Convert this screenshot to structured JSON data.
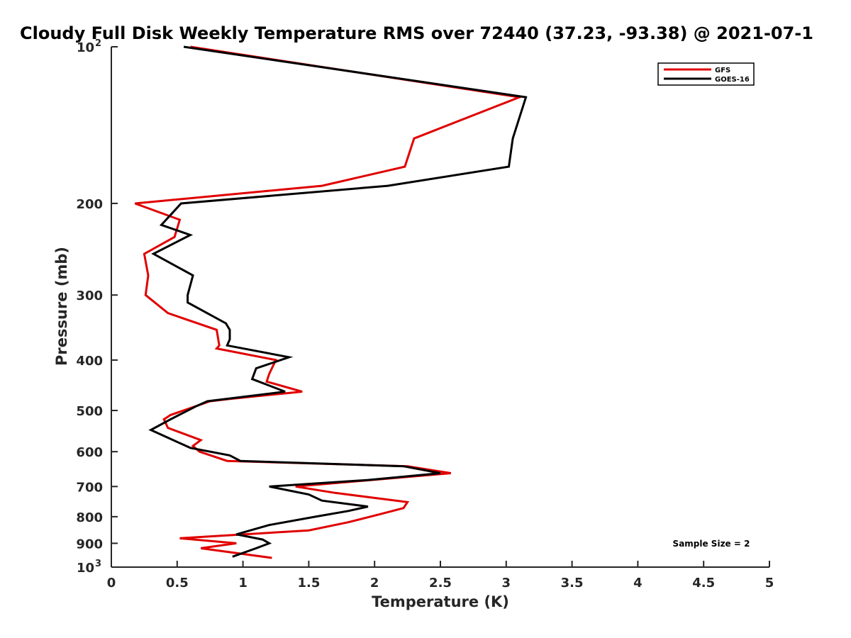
{
  "chart_data": {
    "type": "line",
    "title": "Cloudy Full Disk Weekly Temperature RMS over 72440 (37.23, -93.38) @ 2021-07-1",
    "xlabel": "Temperature (K)",
    "ylabel": "Pressure (mb)",
    "xlim": [
      0,
      5
    ],
    "ylim": [
      100,
      1000
    ],
    "y_scale": "log",
    "y_reversed": true,
    "grid": false,
    "legend_position": "top-right",
    "x_ticks": [
      "0",
      "0.5",
      "1",
      "1.5",
      "2",
      "2.5",
      "3",
      "3.5",
      "4",
      "4.5",
      "5"
    ],
    "x_tick_values": [
      0,
      0.5,
      1,
      1.5,
      2,
      2.5,
      3,
      3.5,
      4,
      4.5,
      5
    ],
    "y_ticks": [
      {
        "value": 100,
        "base": "10",
        "exp": "2"
      },
      {
        "value": 200,
        "label": "200"
      },
      {
        "value": 300,
        "label": "300"
      },
      {
        "value": 400,
        "label": "400"
      },
      {
        "value": 500,
        "label": "500"
      },
      {
        "value": 600,
        "label": "600"
      },
      {
        "value": 700,
        "label": "700"
      },
      {
        "value": 800,
        "label": "800"
      },
      {
        "value": 900,
        "label": "900"
      },
      {
        "value": 1000,
        "base": "10",
        "exp": "3"
      }
    ],
    "series": [
      {
        "name": "GFS",
        "color": "#e00000",
        "points": [
          [
            0.6,
            100
          ],
          [
            3.1,
            125
          ],
          [
            2.3,
            150
          ],
          [
            2.23,
            170
          ],
          [
            1.6,
            185
          ],
          [
            0.18,
            200
          ],
          [
            0.52,
            215
          ],
          [
            0.48,
            232
          ],
          [
            0.25,
            250
          ],
          [
            0.28,
            275
          ],
          [
            0.26,
            300
          ],
          [
            0.43,
            325
          ],
          [
            0.8,
            350
          ],
          [
            0.82,
            375
          ],
          [
            0.8,
            380
          ],
          [
            1.25,
            400
          ],
          [
            1.2,
            425
          ],
          [
            1.18,
            440
          ],
          [
            1.45,
            460
          ],
          [
            0.9,
            475
          ],
          [
            0.75,
            480
          ],
          [
            0.45,
            510
          ],
          [
            0.4,
            520
          ],
          [
            0.43,
            540
          ],
          [
            0.68,
            570
          ],
          [
            0.62,
            585
          ],
          [
            0.67,
            600
          ],
          [
            0.88,
            625
          ],
          [
            2.25,
            640
          ],
          [
            2.58,
            660
          ],
          [
            1.4,
            700
          ],
          [
            1.7,
            720
          ],
          [
            2.25,
            750
          ],
          [
            2.22,
            770
          ],
          [
            2.05,
            790
          ],
          [
            1.8,
            820
          ],
          [
            1.5,
            850
          ],
          [
            0.52,
            880
          ],
          [
            0.95,
            900
          ],
          [
            0.68,
            920
          ],
          [
            1.22,
            960
          ]
        ]
      },
      {
        "name": "GOES-16",
        "color": "#000000",
        "points": [
          [
            0.55,
            100
          ],
          [
            3.15,
            125
          ],
          [
            3.05,
            150
          ],
          [
            3.02,
            170
          ],
          [
            2.1,
            185
          ],
          [
            0.53,
            200
          ],
          [
            0.38,
            220
          ],
          [
            0.6,
            230
          ],
          [
            0.32,
            250
          ],
          [
            0.62,
            275
          ],
          [
            0.58,
            300
          ],
          [
            0.58,
            310
          ],
          [
            0.87,
            340
          ],
          [
            0.9,
            350
          ],
          [
            0.9,
            365
          ],
          [
            0.88,
            375
          ],
          [
            1.35,
            395
          ],
          [
            1.1,
            415
          ],
          [
            1.07,
            435
          ],
          [
            1.32,
            460
          ],
          [
            0.73,
            480
          ],
          [
            0.65,
            490
          ],
          [
            0.45,
            520
          ],
          [
            0.3,
            545
          ],
          [
            0.6,
            590
          ],
          [
            0.9,
            610
          ],
          [
            0.98,
            625
          ],
          [
            2.22,
            640
          ],
          [
            2.5,
            660
          ],
          [
            1.95,
            680
          ],
          [
            1.2,
            700
          ],
          [
            1.5,
            725
          ],
          [
            1.6,
            745
          ],
          [
            1.95,
            765
          ],
          [
            1.8,
            780
          ],
          [
            1.55,
            800
          ],
          [
            1.2,
            830
          ],
          [
            0.95,
            865
          ],
          [
            1.15,
            885
          ],
          [
            1.2,
            900
          ],
          [
            1.1,
            920
          ],
          [
            0.92,
            955
          ]
        ]
      }
    ],
    "annotation": "Sample Size = 2"
  }
}
